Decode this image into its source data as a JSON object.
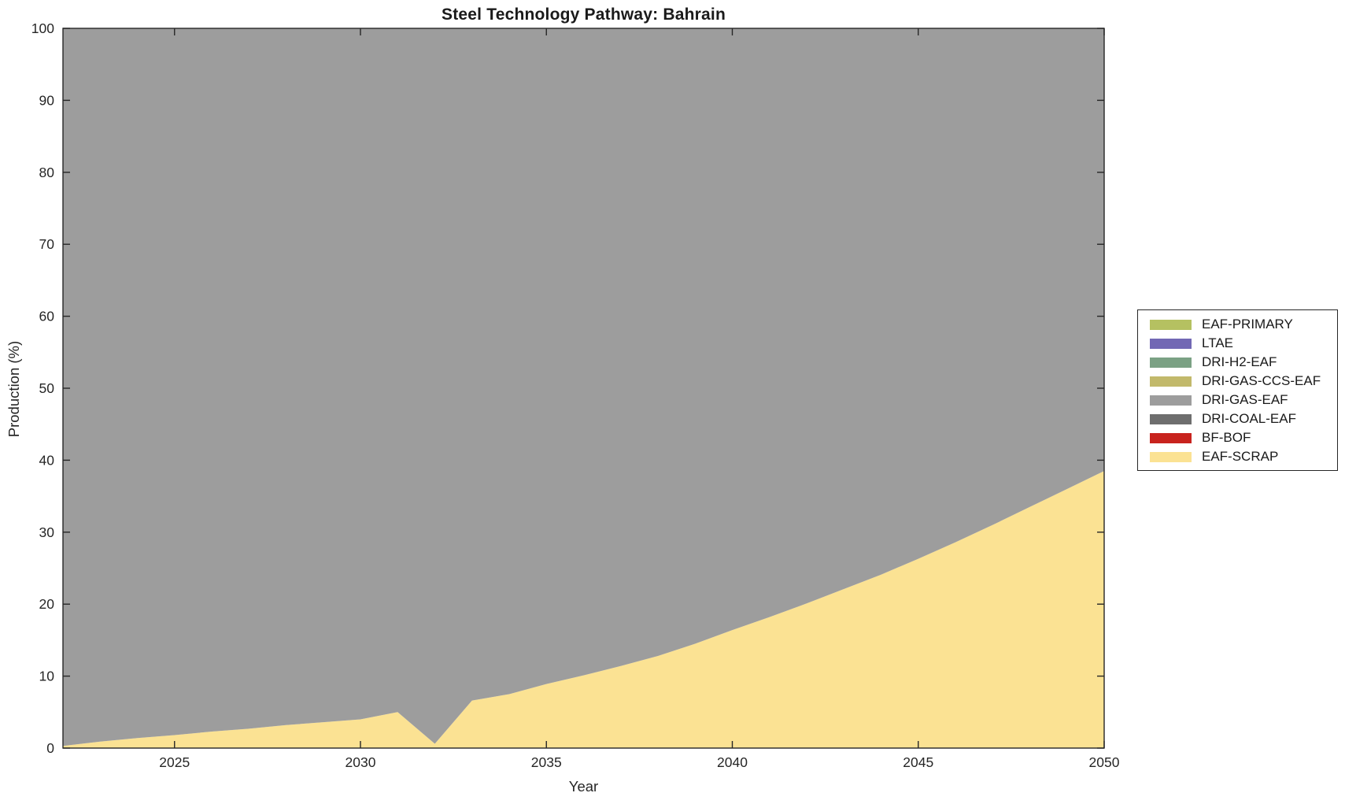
{
  "chart_data": {
    "type": "area",
    "stacked": true,
    "title": "Steel Technology Pathway: Bahrain",
    "xlabel": "Year",
    "ylabel": "Production (%)",
    "xlim": [
      2022,
      2050
    ],
    "ylim": [
      0,
      100
    ],
    "x_ticks": [
      2025,
      2030,
      2035,
      2040,
      2045,
      2050
    ],
    "y_ticks": [
      0,
      10,
      20,
      30,
      40,
      50,
      60,
      70,
      80,
      90,
      100
    ],
    "grid": false,
    "legend_position": "outside-right",
    "x": [
      2022,
      2023,
      2024,
      2025,
      2026,
      2027,
      2028,
      2029,
      2030,
      2031,
      2032,
      2033,
      2034,
      2035,
      2036,
      2037,
      2038,
      2039,
      2040,
      2041,
      2042,
      2043,
      2044,
      2045,
      2046,
      2047,
      2048,
      2049,
      2050
    ],
    "stack_order_bottom_to_top": [
      "EAF-SCRAP",
      "BF-BOF",
      "DRI-COAL-EAF",
      "DRI-GAS-EAF",
      "DRI-GAS-CCS-EAF",
      "DRI-H2-EAF",
      "LTAE",
      "EAF-PRIMARY"
    ],
    "series": [
      {
        "name": "EAF-PRIMARY",
        "color": "#B5C161",
        "values": [
          0,
          0,
          0,
          0,
          0,
          0,
          0,
          0,
          0,
          0,
          0,
          0,
          0,
          0,
          0,
          0,
          0,
          0,
          0,
          0,
          0,
          0,
          0,
          0,
          0,
          0,
          0,
          0,
          0
        ]
      },
      {
        "name": "LTAE",
        "color": "#7268B4",
        "values": [
          0,
          0,
          0,
          0,
          0,
          0,
          0,
          0,
          0,
          0,
          0,
          0,
          0,
          0,
          0,
          0,
          0,
          0,
          0,
          0,
          0,
          0,
          0,
          0,
          0,
          0,
          0,
          0,
          0
        ]
      },
      {
        "name": "DRI-H2-EAF",
        "color": "#7BA184",
        "values": [
          0,
          0,
          0,
          0,
          0,
          0,
          0,
          0,
          0,
          0,
          0,
          0,
          0,
          0,
          0,
          0,
          0,
          0,
          0,
          0,
          0,
          0,
          0,
          0,
          0,
          0,
          0,
          0,
          0
        ]
      },
      {
        "name": "DRI-GAS-CCS-EAF",
        "color": "#C2B96B",
        "values": [
          0,
          0,
          0,
          0,
          0,
          0,
          0,
          0,
          0,
          0,
          0,
          0,
          0,
          0,
          0,
          0,
          0,
          0,
          0,
          0,
          0,
          0,
          0,
          0,
          0,
          0,
          0,
          0,
          0
        ]
      },
      {
        "name": "DRI-GAS-EAF",
        "color": "#9D9D9D",
        "values": [
          99.7,
          99.1,
          98.6,
          98.2,
          97.7,
          97.3,
          96.8,
          96.4,
          96.0,
          95.0,
          99.4,
          93.4,
          92.5,
          91.1,
          89.9,
          88.6,
          87.2,
          85.5,
          83.6,
          81.8,
          79.9,
          77.9,
          75.9,
          73.7,
          71.4,
          69.0,
          66.5,
          64.0,
          61.5
        ]
      },
      {
        "name": "DRI-COAL-EAF",
        "color": "#6E6E6E",
        "values": [
          0,
          0,
          0,
          0,
          0,
          0,
          0,
          0,
          0,
          0,
          0,
          0,
          0,
          0,
          0,
          0,
          0,
          0,
          0,
          0,
          0,
          0,
          0,
          0,
          0,
          0,
          0,
          0,
          0
        ]
      },
      {
        "name": "BF-BOF",
        "color": "#C8231E",
        "values": [
          0,
          0,
          0,
          0,
          0,
          0,
          0,
          0,
          0,
          0,
          0,
          0,
          0,
          0,
          0,
          0,
          0,
          0,
          0,
          0,
          0,
          0,
          0,
          0,
          0,
          0,
          0,
          0,
          0
        ]
      },
      {
        "name": "EAF-SCRAP",
        "color": "#FBE293",
        "values": [
          0.3,
          0.9,
          1.4,
          1.8,
          2.3,
          2.7,
          3.2,
          3.6,
          4.0,
          5.0,
          0.6,
          6.6,
          7.5,
          8.9,
          10.1,
          11.4,
          12.8,
          14.5,
          16.4,
          18.2,
          20.1,
          22.1,
          24.1,
          26.3,
          28.6,
          31.0,
          33.5,
          36.0,
          38.5
        ]
      }
    ],
    "axis_color": "#262626"
  }
}
